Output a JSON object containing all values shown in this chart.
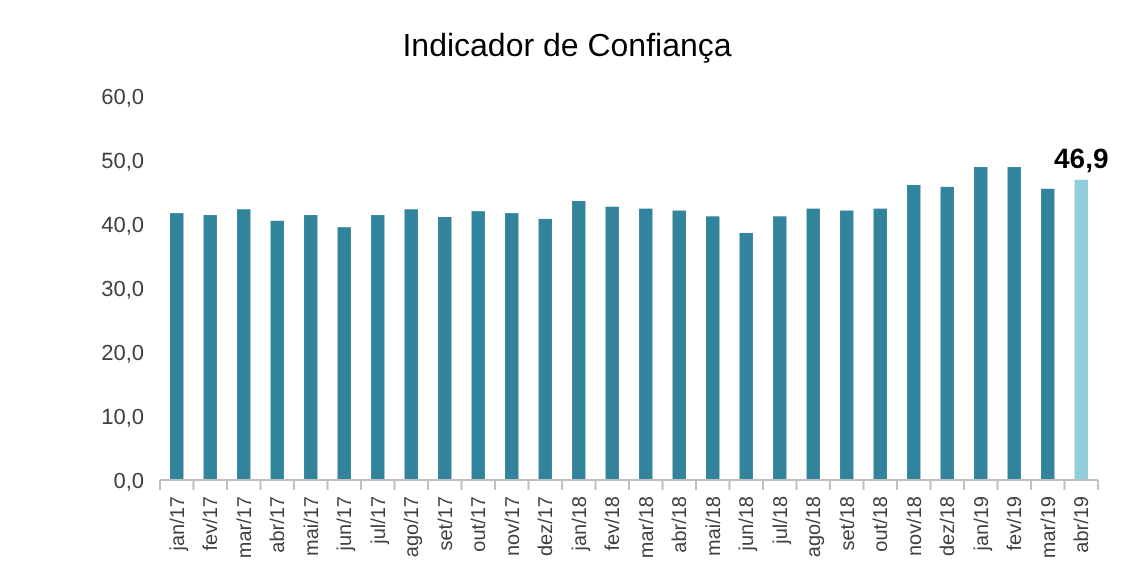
{
  "chart_data": {
    "type": "bar",
    "title": "Indicador de Confiança",
    "categories": [
      "jan/17",
      "fev/17",
      "mar/17",
      "abr/17",
      "mai/17",
      "jun/17",
      "jul/17",
      "ago/17",
      "set/17",
      "out/17",
      "nov/17",
      "dez/17",
      "jan/18",
      "fev/18",
      "mar/18",
      "abr/18",
      "mai/18",
      "jun/18",
      "jul/18",
      "ago/18",
      "set/18",
      "out/18",
      "nov/18",
      "dez/18",
      "jan/19",
      "fev/19",
      "mar/19",
      "abr/19"
    ],
    "values": [
      41.7,
      41.4,
      42.3,
      40.5,
      41.4,
      39.5,
      41.4,
      42.3,
      41.1,
      42.0,
      41.7,
      40.8,
      43.6,
      42.7,
      42.4,
      42.1,
      41.2,
      38.6,
      41.2,
      42.4,
      42.1,
      42.4,
      46.1,
      45.8,
      48.9,
      48.9,
      45.5,
      46.9
    ],
    "colors": [
      "#31849b",
      "#31849b",
      "#31849b",
      "#31849b",
      "#31849b",
      "#31849b",
      "#31849b",
      "#31849b",
      "#31849b",
      "#31849b",
      "#31849b",
      "#31849b",
      "#31849b",
      "#31849b",
      "#31849b",
      "#31849b",
      "#31849b",
      "#31849b",
      "#31849b",
      "#31849b",
      "#31849b",
      "#31849b",
      "#31849b",
      "#31849b",
      "#31849b",
      "#31849b",
      "#31849b",
      "#92cddc"
    ],
    "value_labels": [
      null,
      null,
      null,
      null,
      null,
      null,
      null,
      null,
      null,
      null,
      null,
      null,
      null,
      null,
      null,
      null,
      null,
      null,
      null,
      null,
      null,
      null,
      null,
      null,
      null,
      null,
      null,
      "46,9"
    ],
    "ylim": [
      0,
      60
    ],
    "yticks": [
      {
        "value": 0,
        "label": "0,0"
      },
      {
        "value": 10,
        "label": "10,0"
      },
      {
        "value": 20,
        "label": "20,0"
      },
      {
        "value": 30,
        "label": "30,0"
      },
      {
        "value": 40,
        "label": "40,0"
      },
      {
        "value": 50,
        "label": "50,0"
      },
      {
        "value": 60,
        "label": "60,0"
      }
    ],
    "grid": false
  }
}
